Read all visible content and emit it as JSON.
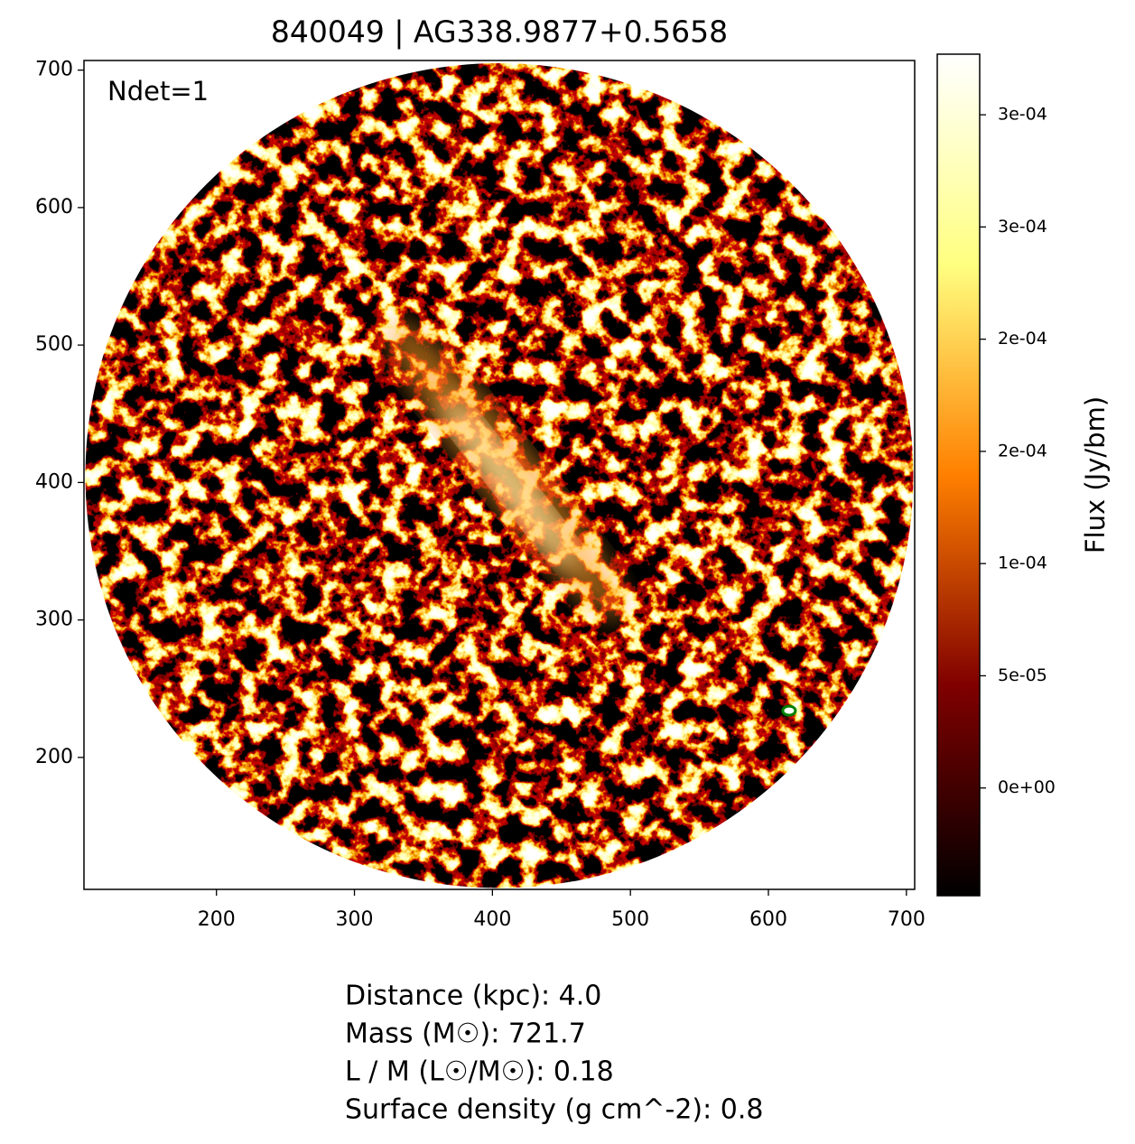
{
  "chart_data": {
    "type": "image",
    "title": "840049 | AG338.9877+0.5658",
    "annotation": "Ndet=1",
    "xlim": [
      104,
      706
    ],
    "ylim": [
      104,
      707
    ],
    "xticks": [
      200,
      300,
      400,
      500,
      600,
      700
    ],
    "yticks": [
      200,
      300,
      400,
      500,
      600,
      700
    ],
    "field": {
      "center": [
        405,
        405
      ],
      "radius": 300
    },
    "detections": [
      {
        "x": 615,
        "y": 234
      }
    ],
    "detection_color": "#008000",
    "colormap": [
      "#000000",
      "#800000",
      "#ff8000",
      "#ffff80",
      "#ffffff"
    ],
    "colorbar": {
      "label": "Flux (Jy/bm)",
      "clim": [
        -4.8e-05,
        0.000327
      ],
      "ticks": [
        {
          "value": 0,
          "label": "0e+00"
        },
        {
          "value": 5e-05,
          "label": "5e-05"
        },
        {
          "value": 0.0001,
          "label": "1e-04"
        },
        {
          "value": 0.00015,
          "label": "2e-04"
        },
        {
          "value": 0.0002,
          "label": "2e-04"
        },
        {
          "value": 0.00025,
          "label": "3e-04"
        },
        {
          "value": 0.0003,
          "label": "3e-04"
        }
      ]
    },
    "info": [
      "Distance (kpc): 4.0",
      "Mass (M☉): 721.7",
      "L / M (L☉/M☉): 0.18",
      "Surface density (g cm^-2): 0.8"
    ]
  }
}
